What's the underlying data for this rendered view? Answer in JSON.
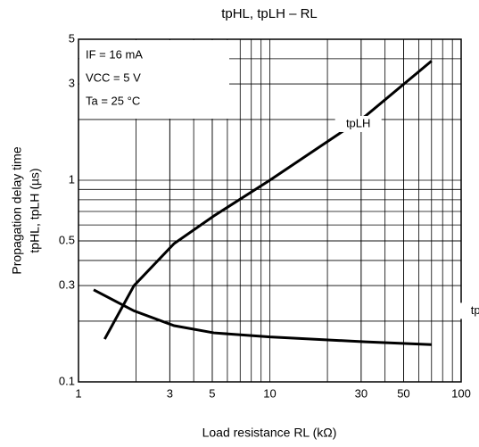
{
  "chart_data": {
    "type": "line",
    "title": "tpHL, tpLH – RL",
    "xlabel": "Load resistance  RL  (kΩ)",
    "ylabel": [
      "Propagation delay time",
      "tpHL, tpLH (µs)"
    ],
    "annotations": [
      "IF = 16 mA",
      "VCC = 5 V",
      "Ta = 25 °C"
    ],
    "xscale": "log",
    "yscale": "log",
    "grid": true,
    "minor_grid": true,
    "xlim": [
      1,
      100
    ],
    "xticks": [
      1,
      3,
      5,
      10,
      30,
      50,
      100
    ],
    "ylim": [
      0.1,
      5
    ],
    "yticks": [
      0.1,
      0.3,
      0.5,
      1,
      3,
      5
    ],
    "series": [
      {
        "name": "tpLH",
        "color": "#000000",
        "x": [
          1.37,
          1.95,
          3.16,
          5.1,
          10,
          31.6,
          70
        ],
        "values": [
          0.163,
          0.3,
          0.485,
          0.665,
          1,
          2.08,
          3.9
        ]
      },
      {
        "name": "tpHL",
        "color": "#000000",
        "x": [
          1.2,
          1.95,
          3.16,
          5.1,
          10,
          31.6,
          70
        ],
        "values": [
          0.286,
          0.225,
          0.19,
          0.175,
          0.167,
          0.158,
          0.153
        ]
      }
    ]
  }
}
